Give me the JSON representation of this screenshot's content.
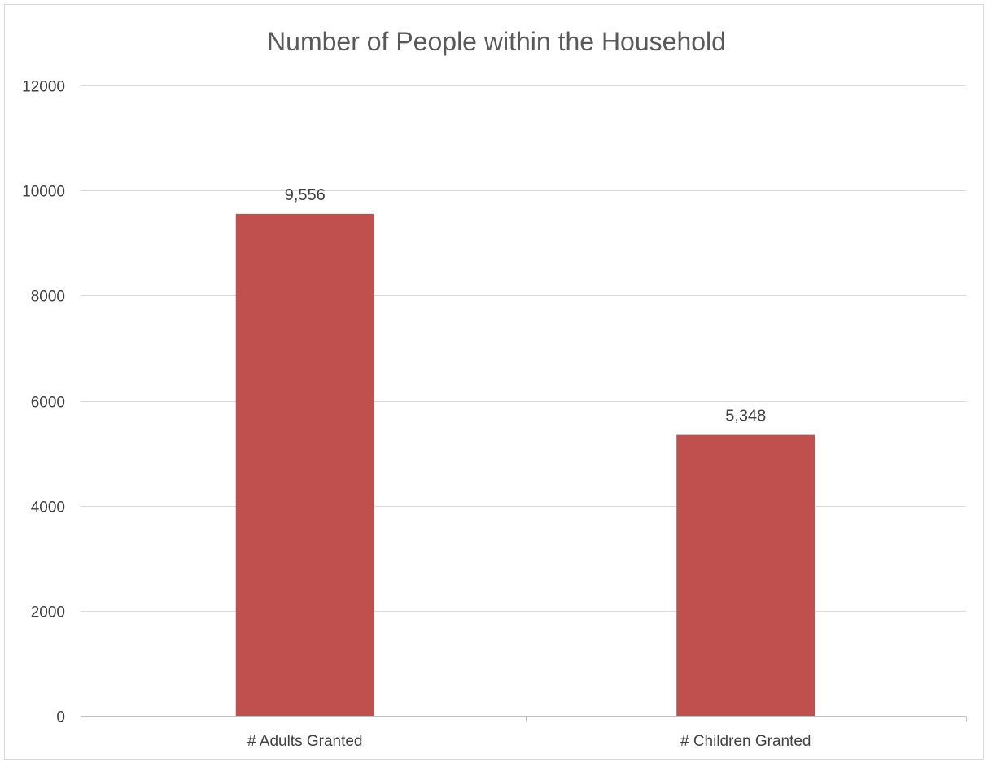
{
  "chart_data": {
    "type": "bar",
    "title": "Number of People within the Household",
    "categories": [
      "# Adults Granted",
      "# Children Granted"
    ],
    "series": [
      {
        "values": [
          9556,
          5348
        ],
        "data_labels": [
          "9,556",
          "5,348"
        ],
        "color": "#c0504d"
      }
    ],
    "ylim": [
      0,
      12000
    ],
    "yticks": [
      0,
      2000,
      4000,
      6000,
      8000,
      10000,
      12000
    ],
    "xlabel": "",
    "ylabel": "",
    "grid": true,
    "legend": "none"
  }
}
